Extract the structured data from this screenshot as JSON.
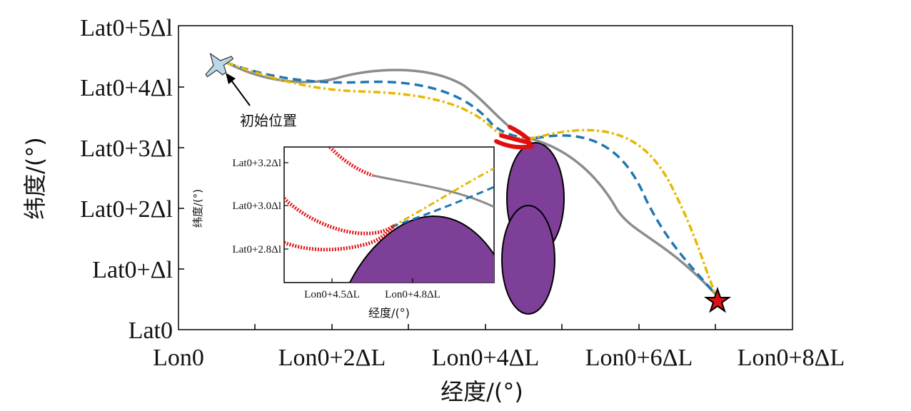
{
  "chart_data": {
    "type": "line",
    "x_ticks": [
      "Lon0",
      "Lon0+2ΔL",
      "Lon0+4ΔL",
      "Lon0+6ΔL",
      "Lon0+8ΔL"
    ],
    "y_ticks": [
      "Lat0",
      "Lat0+Δl",
      "Lat0+2Δl",
      "Lat0+3Δl",
      "Lat0+4Δl",
      "Lat0+5Δl"
    ],
    "xlabel": "经度/(°)",
    "ylabel": "纬度/(°)",
    "annotation": "初始位置",
    "colors": {
      "gray": "#8c8c8c",
      "blue": "#1f77b4",
      "yellow": "#e6b800",
      "red": "#e01010",
      "purple": "#7e3f98"
    },
    "inset": {
      "x_ticks": [
        "Lon0+4.5ΔL",
        "Lon0+4.8ΔL"
      ],
      "y_ticks": [
        "Lat0+3.2Δl",
        "Lat0+3.0Δl",
        "Lat0+2.8Δl"
      ],
      "xlabel": "经度/(°)",
      "ylabel": "纬度/(°)"
    }
  }
}
